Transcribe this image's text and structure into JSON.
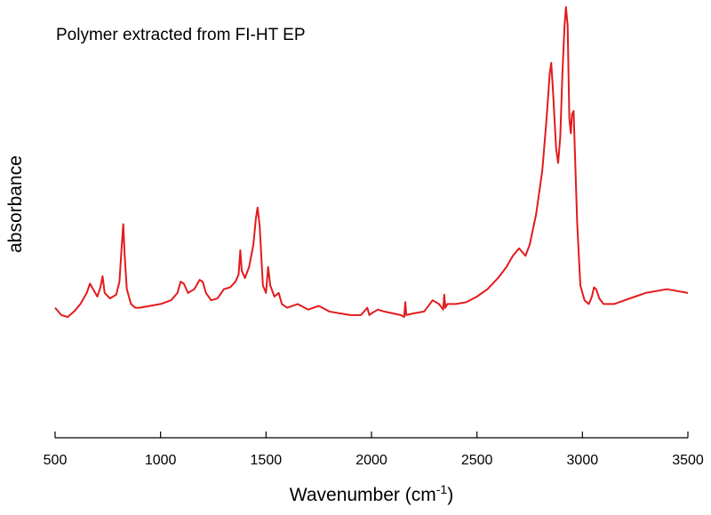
{
  "chart_data": {
    "type": "line",
    "title": "Polymer extracted from FI-HT EP",
    "xlabel": "Wavenumber (cm",
    "xlabel_superscript": "-1",
    "xlabel_suffix": ")",
    "ylabel": "absorbance",
    "xlim": [
      500,
      3500
    ],
    "ylim": [
      0,
      1
    ],
    "x_ticks": [
      500,
      1000,
      1500,
      2000,
      2500,
      3000,
      3500
    ],
    "x_tick_labels": [
      "500",
      "1000",
      "1500",
      "2000",
      "2500",
      "3000",
      "3500"
    ],
    "y_ticks_shown": false,
    "grid": false,
    "series": [
      {
        "color": "#e31a1c",
        "x": [
          500,
          530,
          560,
          590,
          620,
          650,
          665,
          680,
          700,
          715,
          725,
          735,
          760,
          790,
          805,
          815,
          823,
          830,
          840,
          860,
          880,
          900,
          950,
          1000,
          1050,
          1080,
          1095,
          1110,
          1130,
          1160,
          1185,
          1200,
          1215,
          1240,
          1270,
          1300,
          1330,
          1355,
          1370,
          1378,
          1385,
          1400,
          1420,
          1440,
          1452,
          1460,
          1470,
          1485,
          1500,
          1510,
          1520,
          1540,
          1560,
          1575,
          1600,
          1650,
          1700,
          1750,
          1800,
          1850,
          1900,
          1950,
          1980,
          1990,
          2000,
          2030,
          2060,
          2100,
          2140,
          2155,
          2160,
          2165,
          2200,
          2250,
          2290,
          2320,
          2340,
          2345,
          2350,
          2360,
          2400,
          2450,
          2500,
          2550,
          2600,
          2640,
          2670,
          2700,
          2730,
          2750,
          2780,
          2810,
          2830,
          2845,
          2852,
          2860,
          2875,
          2885,
          2895,
          2905,
          2915,
          2922,
          2930,
          2938,
          2945,
          2950,
          2958,
          2965,
          2975,
          2990,
          3010,
          3030,
          3045,
          3055,
          3065,
          3080,
          3100,
          3150,
          3200,
          3250,
          3300,
          3350,
          3400,
          3450,
          3500
        ],
        "y": [
          0.19,
          0.17,
          0.165,
          0.18,
          0.2,
          0.23,
          0.255,
          0.24,
          0.22,
          0.245,
          0.275,
          0.23,
          0.215,
          0.225,
          0.26,
          0.35,
          0.415,
          0.33,
          0.24,
          0.2,
          0.19,
          0.19,
          0.195,
          0.2,
          0.21,
          0.23,
          0.26,
          0.255,
          0.23,
          0.24,
          0.265,
          0.26,
          0.23,
          0.21,
          0.215,
          0.24,
          0.245,
          0.26,
          0.28,
          0.345,
          0.29,
          0.27,
          0.3,
          0.36,
          0.43,
          0.46,
          0.41,
          0.25,
          0.23,
          0.3,
          0.25,
          0.22,
          0.23,
          0.2,
          0.19,
          0.2,
          0.185,
          0.195,
          0.18,
          0.175,
          0.17,
          0.17,
          0.19,
          0.17,
          0.175,
          0.185,
          0.18,
          0.175,
          0.17,
          0.165,
          0.205,
          0.17,
          0.175,
          0.18,
          0.21,
          0.2,
          0.185,
          0.225,
          0.19,
          0.2,
          0.2,
          0.205,
          0.22,
          0.24,
          0.27,
          0.3,
          0.33,
          0.35,
          0.33,
          0.36,
          0.44,
          0.56,
          0.7,
          0.82,
          0.85,
          0.78,
          0.62,
          0.58,
          0.65,
          0.82,
          0.95,
          1.0,
          0.95,
          0.7,
          0.66,
          0.71,
          0.72,
          0.6,
          0.42,
          0.25,
          0.21,
          0.2,
          0.22,
          0.245,
          0.24,
          0.215,
          0.2,
          0.2,
          0.21,
          0.22,
          0.23,
          0.235,
          0.24,
          0.235,
          0.23
        ]
      }
    ]
  }
}
